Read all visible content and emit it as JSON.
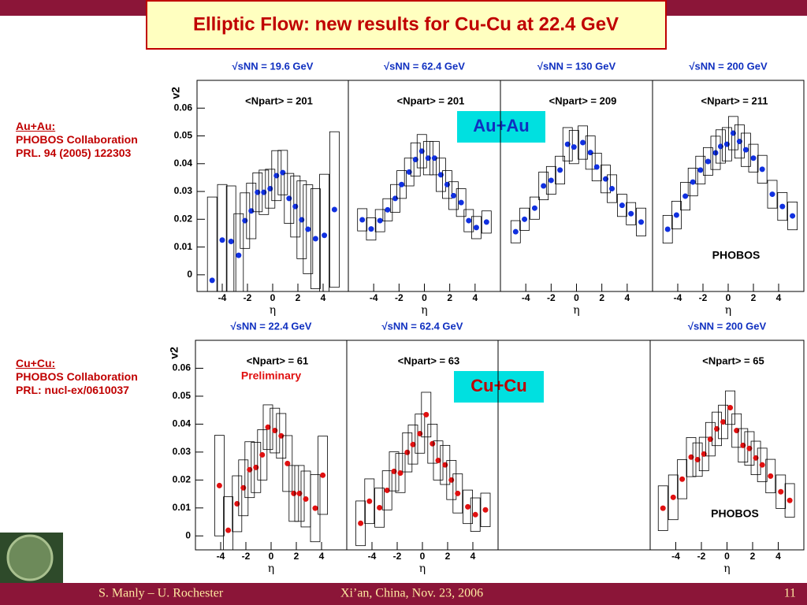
{
  "title": "Elliptic Flow: new results for Cu-Cu at 22.4 GeV",
  "au_au_note": [
    "Au+Au:",
    "PHOBOS Collaboration",
    "PRL. 94 (2005) 122303"
  ],
  "cu_cu_note": [
    "Cu+Cu:",
    "PHOBOS Collaboration",
    "PRL: nucl-ex/0610037"
  ],
  "au_au_tag": "Au+Au",
  "cu_cu_tag": "Cu+Cu",
  "footer": {
    "author": "S. Manly – U. Rochester",
    "venue": "Xi’an, China, Nov. 23, 2006",
    "page": "11"
  },
  "chart_data": [
    {
      "type": "scatter",
      "energy_label": "√sNN = 19.6 GeV",
      "npart_label": "<Npart> = 201",
      "ylabel": "v2",
      "xlabel": "η",
      "color": "#1030e0",
      "xlim": [
        -6,
        6
      ],
      "ylim": [
        -0.006,
        0.07
      ],
      "xticks": [
        -4,
        -2,
        0,
        2,
        4
      ],
      "yticks": [
        0,
        0.01,
        0.02,
        0.03,
        0.04,
        0.05,
        0.06
      ],
      "x": [
        -4.8,
        -4.0,
        -3.3,
        -2.7,
        -2.2,
        -1.7,
        -1.2,
        -0.7,
        -0.2,
        0.3,
        0.8,
        1.3,
        1.8,
        2.3,
        2.8,
        3.4,
        4.1,
        4.9
      ],
      "values": [
        -0.002,
        0.0125,
        0.012,
        0.007,
        0.0195,
        0.023,
        0.0297,
        0.0297,
        0.031,
        0.0357,
        0.0368,
        0.0275,
        0.0246,
        0.0198,
        0.0164,
        0.013,
        0.0142,
        0.0235
      ],
      "errors": [
        0.03,
        0.02,
        0.02,
        0.015,
        0.01,
        0.01,
        0.007,
        0.008,
        0.007,
        0.009,
        0.008,
        0.009,
        0.011,
        0.014,
        0.016,
        0.018,
        0.022,
        0.028
      ]
    },
    {
      "type": "scatter",
      "energy_label": "√sNN = 62.4 GeV",
      "npart_label": "<Npart> = 201",
      "xlabel": "η",
      "color": "#1030e0",
      "xlim": [
        -6,
        6
      ],
      "ylim": [
        -0.006,
        0.07
      ],
      "xticks": [
        -4,
        -2,
        0,
        2,
        4
      ],
      "x": [
        -4.9,
        -4.2,
        -3.5,
        -2.9,
        -2.3,
        -1.8,
        -1.2,
        -0.7,
        -0.2,
        0.3,
        0.8,
        1.3,
        1.8,
        2.3,
        2.9,
        3.5,
        4.1,
        4.9
      ],
      "values": [
        0.0198,
        0.0165,
        0.0195,
        0.0234,
        0.0275,
        0.0325,
        0.037,
        0.0415,
        0.0445,
        0.042,
        0.042,
        0.036,
        0.0325,
        0.0285,
        0.026,
        0.0195,
        0.017,
        0.019
      ],
      "errors": [
        0.004,
        0.004,
        0.004,
        0.004,
        0.005,
        0.005,
        0.005,
        0.006,
        0.006,
        0.006,
        0.006,
        0.006,
        0.005,
        0.005,
        0.005,
        0.004,
        0.004,
        0.004
      ]
    },
    {
      "type": "scatter",
      "energy_label": "√sNN = 130 GeV",
      "npart_label": "<Npart> = 209",
      "xlabel": "η",
      "color": "#1030e0",
      "xlim": [
        -6,
        6
      ],
      "ylim": [
        -0.006,
        0.07
      ],
      "xticks": [
        -4,
        -2,
        0,
        2,
        4
      ],
      "x": [
        -4.8,
        -4.1,
        -3.3,
        -2.6,
        -2.0,
        -1.3,
        -0.7,
        -0.2,
        0.5,
        1.1,
        1.6,
        2.3,
        2.8,
        3.6,
        4.3,
        5.1
      ],
      "values": [
        0.0155,
        0.02,
        0.024,
        0.032,
        0.034,
        0.0377,
        0.047,
        0.046,
        0.0476,
        0.044,
        0.0388,
        0.0345,
        0.031,
        0.025,
        0.022,
        0.019
      ],
      "errors": [
        0.004,
        0.004,
        0.004,
        0.005,
        0.005,
        0.005,
        0.006,
        0.006,
        0.006,
        0.006,
        0.005,
        0.005,
        0.005,
        0.004,
        0.004,
        0.005
      ]
    },
    {
      "type": "scatter",
      "energy_label": "√sNN = 200 GeV",
      "npart_label": "<Npart> = 211",
      "xlabel": "η",
      "color": "#1030e0",
      "annotation": "PHOBOS",
      "annotation_color": "#000000",
      "xlim": [
        -6,
        6
      ],
      "ylim": [
        -0.006,
        0.07
      ],
      "xticks": [
        -4,
        -2,
        0,
        2,
        4
      ],
      "x": [
        -4.8,
        -4.1,
        -3.4,
        -2.8,
        -2.2,
        -1.6,
        -1.0,
        -0.6,
        -0.1,
        0.4,
        0.9,
        1.4,
        2.0,
        2.7,
        3.5,
        4.3,
        5.1
      ],
      "values": [
        0.0164,
        0.0215,
        0.0283,
        0.0334,
        0.0377,
        0.0408,
        0.0439,
        0.0462,
        0.047,
        0.051,
        0.048,
        0.045,
        0.042,
        0.038,
        0.029,
        0.0246,
        0.0212
      ],
      "errors": [
        0.005,
        0.005,
        0.005,
        0.005,
        0.005,
        0.005,
        0.006,
        0.006,
        0.006,
        0.006,
        0.006,
        0.006,
        0.005,
        0.005,
        0.005,
        0.005,
        0.005
      ]
    },
    {
      "type": "scatter",
      "energy_label": "√sNN = 22.4 GeV",
      "npart_label": "<Npart> = 61",
      "ylabel": "v2",
      "xlabel": "η",
      "color": "#e01010",
      "annotation": "Preliminary",
      "annotation_color": "#e01010",
      "xlim": [
        -6,
        6
      ],
      "ylim": [
        -0.005,
        0.07
      ],
      "xticks": [
        -4,
        -2,
        0,
        2,
        4
      ],
      "yticks": [
        0,
        0.01,
        0.02,
        0.03,
        0.04,
        0.05,
        0.06
      ],
      "x": [
        -4.1,
        -3.4,
        -2.7,
        -2.2,
        -1.7,
        -1.2,
        -0.7,
        -0.25,
        0.3,
        0.8,
        1.3,
        1.8,
        2.25,
        2.75,
        3.5,
        4.1
      ],
      "values": [
        0.018,
        0.002,
        0.0115,
        0.0172,
        0.0237,
        0.0245,
        0.029,
        0.0389,
        0.0377,
        0.0358,
        0.0259,
        0.0152,
        0.0152,
        0.0132,
        0.0099,
        0.0217
      ],
      "errors": [
        0.018,
        0.012,
        0.01,
        0.01,
        0.01,
        0.009,
        0.009,
        0.008,
        0.008,
        0.008,
        0.01,
        0.01,
        0.01,
        0.01,
        0.012,
        0.014
      ]
    },
    {
      "type": "scatter",
      "energy_label": "√sNN = 62.4 GeV",
      "npart_label": "<Npart> = 63",
      "xlabel": "η",
      "color": "#e01010",
      "xlim": [
        -6,
        6
      ],
      "ylim": [
        -0.005,
        0.07
      ],
      "xticks": [
        -4,
        -2,
        0,
        2,
        4
      ],
      "x": [
        -4.9,
        -4.2,
        -3.4,
        -2.8,
        -2.25,
        -1.75,
        -1.2,
        -0.75,
        -0.2,
        0.3,
        0.8,
        1.25,
        1.8,
        2.3,
        2.8,
        3.6,
        4.2,
        5.0
      ],
      "values": [
        0.0045,
        0.0124,
        0.0101,
        0.0163,
        0.0231,
        0.0225,
        0.0299,
        0.0327,
        0.0366,
        0.0434,
        0.033,
        0.027,
        0.0254,
        0.02,
        0.0152,
        0.0104,
        0.0076,
        0.0093
      ],
      "errors": [
        0.008,
        0.008,
        0.007,
        0.007,
        0.007,
        0.007,
        0.007,
        0.007,
        0.007,
        0.008,
        0.007,
        0.007,
        0.007,
        0.007,
        0.007,
        0.006,
        0.006,
        0.006
      ]
    },
    {
      "type": "scatter",
      "energy_label": "√sNN = 200 GeV",
      "npart_label": "<Npart> = 65",
      "xlabel": "η",
      "color": "#e01010",
      "annotation": "PHOBOS",
      "annotation_color": "#000000",
      "xlim": [
        -6,
        6
      ],
      "ylim": [
        -0.005,
        0.07
      ],
      "xticks": [
        -4,
        -2,
        0,
        2,
        4
      ],
      "x": [
        -5.0,
        -4.2,
        -3.5,
        -2.8,
        -2.3,
        -1.8,
        -1.3,
        -0.8,
        -0.3,
        0.25,
        0.75,
        1.25,
        1.75,
        2.25,
        2.75,
        3.4,
        4.2,
        4.9
      ],
      "values": [
        0.0099,
        0.0138,
        0.0203,
        0.0282,
        0.0273,
        0.0293,
        0.0346,
        0.0383,
        0.0408,
        0.0459,
        0.0377,
        0.0324,
        0.0313,
        0.0279,
        0.0254,
        0.0214,
        0.0158,
        0.0127
      ],
      "errors": [
        0.008,
        0.008,
        0.007,
        0.007,
        0.006,
        0.006,
        0.006,
        0.006,
        0.006,
        0.006,
        0.006,
        0.006,
        0.006,
        0.006,
        0.006,
        0.006,
        0.006,
        0.006
      ]
    }
  ]
}
